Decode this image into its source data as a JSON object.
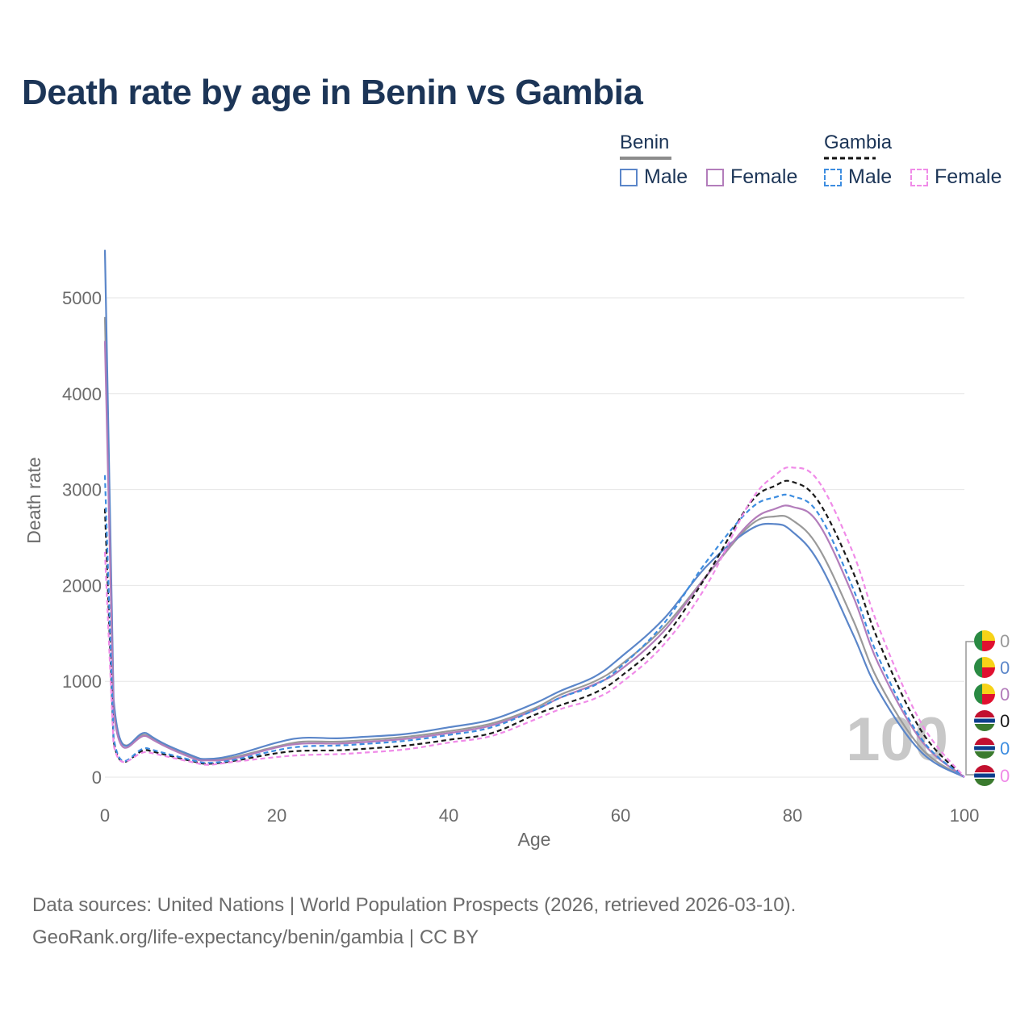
{
  "title": "Death rate by age in Benin vs Gambia",
  "legend": {
    "benin": {
      "label": "Benin",
      "male": "Male",
      "female": "Female"
    },
    "gambia": {
      "label": "Gambia",
      "male": "Male",
      "female": "Female"
    }
  },
  "colors": {
    "benin_rule": "#8c8c8c",
    "benin_male": "#5b86c9",
    "benin_female": "#b37dbb",
    "gambia_rule": "#111111",
    "gambia_male": "#3d8de0",
    "gambia_female": "#f08be8",
    "benin_total": "#9a9a9a",
    "gambia_total": "#1a1a1a"
  },
  "year_watermark": "100",
  "end_values": [
    "0",
    "0",
    "0",
    "0",
    "0",
    "0"
  ],
  "chart_data": {
    "type": "line",
    "title": "Death rate by age in Benin vs Gambia",
    "xlabel": "Age",
    "ylabel": "Death rate",
    "xlim": [
      0,
      100
    ],
    "ylim": [
      0,
      5500
    ],
    "xticks": [
      "0",
      "20",
      "40",
      "60",
      "80",
      "100"
    ],
    "yticks": [
      "0",
      "1000",
      "2000",
      "3000",
      "4000",
      "5000"
    ],
    "x": [
      0,
      1,
      5,
      10,
      12,
      15,
      20,
      23,
      27,
      30,
      35,
      40,
      45,
      50,
      53,
      57,
      60,
      65,
      70,
      75,
      78,
      80,
      83,
      87,
      90,
      95,
      100
    ],
    "series": [
      {
        "name": "Benin (total)",
        "dash": "solid",
        "values": [
          4800,
          760,
          430,
          215,
          180,
          210,
          320,
          370,
          370,
          385,
          420,
          480,
          560,
          720,
          860,
          1000,
          1170,
          1560,
          2100,
          2620,
          2720,
          2680,
          2400,
          1650,
          1000,
          300,
          0
        ]
      },
      {
        "name": "Benin Male",
        "dash": "solid",
        "values": [
          5500,
          820,
          450,
          230,
          190,
          230,
          360,
          410,
          405,
          420,
          450,
          520,
          600,
          770,
          900,
          1050,
          1250,
          1650,
          2200,
          2580,
          2640,
          2560,
          2250,
          1500,
          900,
          260,
          0
        ]
      },
      {
        "name": "Benin Female",
        "dash": "solid",
        "values": [
          4550,
          700,
          420,
          205,
          175,
          195,
          310,
          350,
          350,
          365,
          400,
          460,
          540,
          700,
          830,
          970,
          1120,
          1520,
          2100,
          2650,
          2800,
          2820,
          2650,
          1900,
          1180,
          380,
          0
        ]
      },
      {
        "name": "Gambia (total)",
        "dash": "dash",
        "values": [
          2800,
          380,
          280,
          170,
          140,
          170,
          250,
          275,
          280,
          295,
          330,
          390,
          460,
          650,
          750,
          880,
          1050,
          1450,
          2100,
          2850,
          3040,
          3080,
          2880,
          2150,
          1420,
          480,
          0
        ]
      },
      {
        "name": "Gambia Male",
        "dash": "dash",
        "values": [
          3150,
          420,
          300,
          180,
          150,
          180,
          280,
          320,
          330,
          345,
          380,
          440,
          520,
          700,
          830,
          960,
          1150,
          1600,
          2250,
          2790,
          2920,
          2930,
          2750,
          1980,
          1250,
          400,
          0
        ]
      },
      {
        "name": "Gambia Female",
        "dash": "dash",
        "values": [
          2350,
          340,
          260,
          160,
          130,
          160,
          210,
          230,
          240,
          255,
          290,
          360,
          430,
          600,
          710,
          820,
          980,
          1380,
          2000,
          2860,
          3150,
          3230,
          3090,
          2350,
          1570,
          560,
          0
        ]
      }
    ]
  },
  "footer": {
    "line1": "Data sources: United Nations | World Population Prospects (2026, retrieved 2026-03-10).",
    "line2": "GeoRank.org/life-expectancy/benin/gambia | CC BY"
  }
}
